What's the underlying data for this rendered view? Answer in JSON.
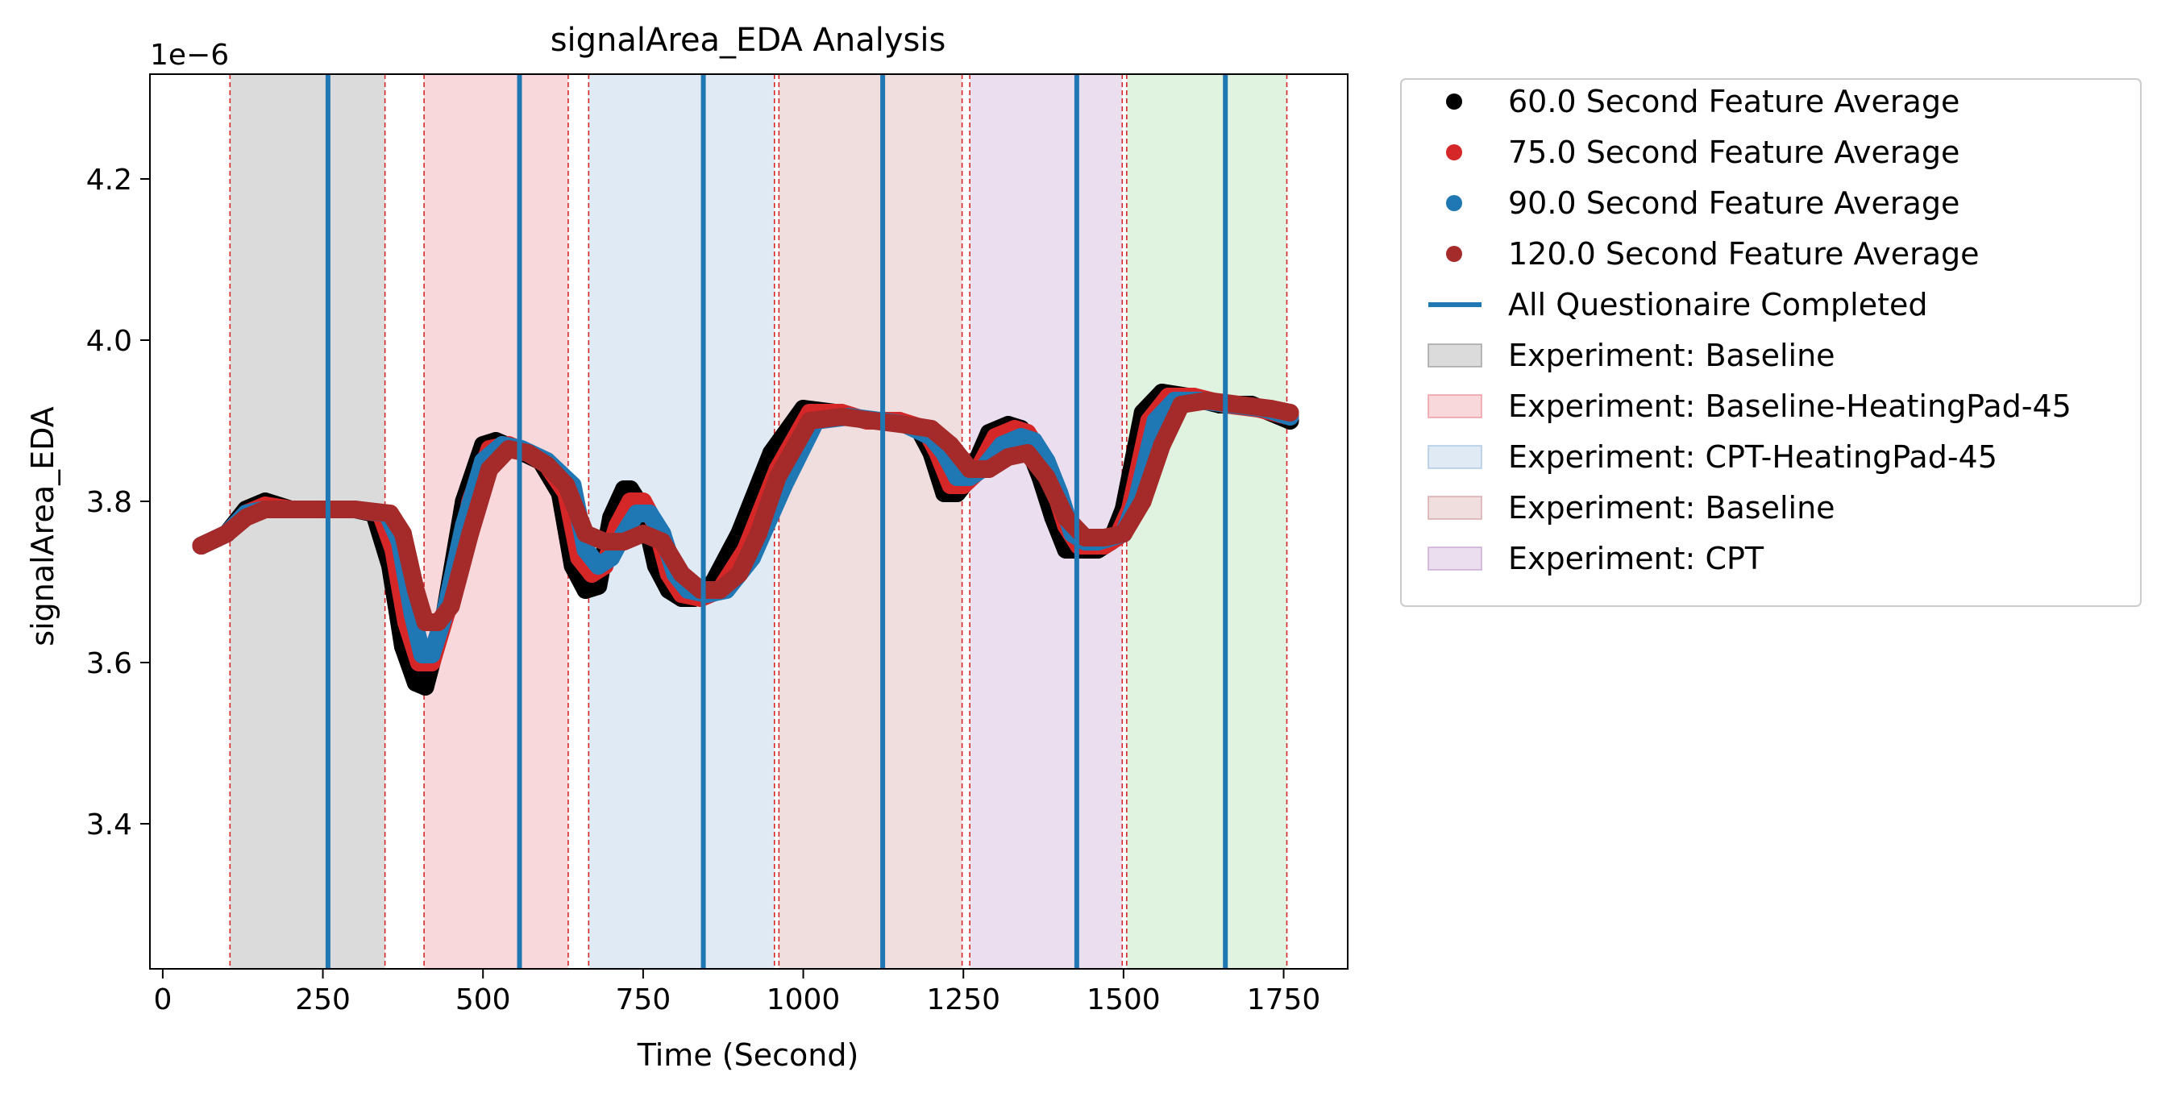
{
  "chart_data": {
    "type": "scatter",
    "title": "signalArea_EDA Analysis",
    "xlabel": "Time (Second)",
    "ylabel": "signalArea_EDA",
    "y_offset_label": "1e−6",
    "xlim": [
      -20,
      1850
    ],
    "ylim": [
      3.22,
      4.33
    ],
    "y_scale_factor": 1e-06,
    "x_ticks": [
      0,
      250,
      500,
      750,
      1000,
      1250,
      1500,
      1750
    ],
    "x_tick_labels": [
      "0",
      "250",
      "500",
      "750",
      "1000",
      "1250",
      "1500",
      "1750"
    ],
    "y_ticks": [
      3.4,
      3.6,
      3.8,
      4.0,
      4.2
    ],
    "y_tick_labels": [
      "3.4",
      "3.6",
      "3.8",
      "4.0",
      "4.2"
    ],
    "grid": false,
    "legend_placement": "outside-upper-right",
    "experiment_regions": [
      {
        "label": "Experiment: Baseline",
        "start": 105,
        "end": 347,
        "color": "#7f7f7f"
      },
      {
        "label": "Experiment: Baseline-HeatingPad-45",
        "start": 408,
        "end": 633,
        "color": "#e8737c"
      },
      {
        "label": "Experiment: CPT-HeatingPad-45",
        "start": 665,
        "end": 955,
        "color": "#8db4d6"
      },
      {
        "label": "Experiment: Baseline",
        "start": 962,
        "end": 1248,
        "color": "#c98a8a"
      },
      {
        "label": "Experiment: CPT",
        "start": 1260,
        "end": 1498,
        "color": "#b88ac4"
      },
      {
        "label": "",
        "start": 1505,
        "end": 1755,
        "color": "#8fcf8f"
      }
    ],
    "boundary_lines": [
      105,
      347,
      408,
      633,
      665,
      955,
      962,
      1248,
      1260,
      1498,
      1505,
      1755
    ],
    "questionnaire_lines": {
      "label": "All Questionaire Completed",
      "color": "#1f77b4",
      "x": [
        258,
        557,
        844,
        1124,
        1427,
        1659
      ]
    },
    "series": [
      {
        "name": "60.0 Second Feature Average",
        "color": "#000000",
        "x": [
          60,
          100,
          130,
          160,
          200,
          250,
          300,
          330,
          355,
          375,
          395,
          410,
          440,
          470,
          500,
          520,
          550,
          590,
          620,
          640,
          660,
          680,
          700,
          720,
          730,
          750,
          770,
          790,
          810,
          830,
          860,
          900,
          950,
          1000,
          1050,
          1100,
          1150,
          1180,
          1200,
          1220,
          1240,
          1260,
          1290,
          1320,
          1340,
          1350,
          1370,
          1390,
          1410,
          1420,
          1440,
          1460,
          1480,
          1500,
          1530,
          1560,
          1600,
          1650,
          1700,
          1760
        ],
        "y": [
          3.745,
          3.76,
          3.79,
          3.8,
          3.79,
          3.79,
          3.79,
          3.785,
          3.72,
          3.62,
          3.575,
          3.57,
          3.66,
          3.8,
          3.87,
          3.875,
          3.865,
          3.85,
          3.81,
          3.72,
          3.69,
          3.695,
          3.78,
          3.815,
          3.815,
          3.79,
          3.72,
          3.69,
          3.68,
          3.68,
          3.7,
          3.76,
          3.86,
          3.915,
          3.91,
          3.9,
          3.9,
          3.89,
          3.86,
          3.81,
          3.81,
          3.83,
          3.885,
          3.895,
          3.89,
          3.87,
          3.83,
          3.78,
          3.74,
          3.74,
          3.74,
          3.74,
          3.75,
          3.79,
          3.91,
          3.935,
          3.93,
          3.92,
          3.92,
          3.9
        ]
      },
      {
        "name": "75.0 Second Feature Average",
        "color": "#d62728",
        "x": [
          60,
          100,
          130,
          160,
          200,
          250,
          300,
          340,
          360,
          380,
          400,
          420,
          450,
          480,
          510,
          540,
          570,
          600,
          630,
          650,
          670,
          690,
          710,
          730,
          750,
          770,
          790,
          810,
          840,
          870,
          910,
          960,
          1010,
          1060,
          1100,
          1150,
          1190,
          1210,
          1230,
          1250,
          1270,
          1300,
          1330,
          1350,
          1370,
          1390,
          1410,
          1430,
          1450,
          1470,
          1490,
          1510,
          1540,
          1570,
          1610,
          1660,
          1710,
          1760
        ],
        "y": [
          3.745,
          3.76,
          3.785,
          3.795,
          3.79,
          3.79,
          3.79,
          3.785,
          3.74,
          3.65,
          3.6,
          3.6,
          3.68,
          3.8,
          3.865,
          3.87,
          3.86,
          3.845,
          3.81,
          3.73,
          3.71,
          3.72,
          3.77,
          3.8,
          3.8,
          3.77,
          3.71,
          3.685,
          3.68,
          3.69,
          3.74,
          3.84,
          3.91,
          3.91,
          3.9,
          3.9,
          3.89,
          3.86,
          3.82,
          3.82,
          3.835,
          3.88,
          3.89,
          3.885,
          3.86,
          3.82,
          3.77,
          3.745,
          3.745,
          3.745,
          3.755,
          3.79,
          3.9,
          3.93,
          3.93,
          3.92,
          3.915,
          3.905
        ]
      },
      {
        "name": "90.0 Second Feature Average",
        "color": "#1f77b4",
        "x": [
          60,
          100,
          130,
          160,
          200,
          250,
          300,
          350,
          370,
          390,
          405,
          420,
          440,
          470,
          500,
          530,
          560,
          600,
          640,
          660,
          680,
          700,
          720,
          740,
          760,
          780,
          800,
          820,
          850,
          880,
          920,
          970,
          1020,
          1070,
          1120,
          1160,
          1200,
          1220,
          1240,
          1260,
          1280,
          1310,
          1340,
          1360,
          1380,
          1400,
          1420,
          1440,
          1460,
          1480,
          1500,
          1520,
          1550,
          1580,
          1620,
          1670,
          1720,
          1760
        ],
        "y": [
          3.745,
          3.76,
          3.785,
          3.79,
          3.79,
          3.79,
          3.79,
          3.785,
          3.75,
          3.66,
          3.61,
          3.61,
          3.66,
          3.77,
          3.85,
          3.87,
          3.865,
          3.85,
          3.82,
          3.74,
          3.72,
          3.73,
          3.76,
          3.785,
          3.785,
          3.76,
          3.71,
          3.69,
          3.685,
          3.69,
          3.73,
          3.82,
          3.9,
          3.905,
          3.9,
          3.895,
          3.88,
          3.86,
          3.83,
          3.83,
          3.84,
          3.87,
          3.88,
          3.875,
          3.85,
          3.81,
          3.76,
          3.75,
          3.75,
          3.755,
          3.76,
          3.8,
          3.9,
          3.925,
          3.925,
          3.92,
          3.915,
          3.905
        ]
      },
      {
        "name": "120.0 Second Feature Average",
        "color": "#a52a2a",
        "x": [
          60,
          100,
          130,
          160,
          200,
          250,
          300,
          355,
          375,
          395,
          410,
          430,
          450,
          480,
          510,
          540,
          570,
          600,
          630,
          660,
          690,
          720,
          750,
          780,
          810,
          840,
          870,
          900,
          930,
          960,
          1010,
          1060,
          1110,
          1160,
          1200,
          1230,
          1260,
          1290,
          1320,
          1350,
          1380,
          1410,
          1440,
          1470,
          1500,
          1530,
          1560,
          1590,
          1630,
          1680,
          1730,
          1760
        ],
        "y": [
          3.745,
          3.76,
          3.78,
          3.79,
          3.79,
          3.79,
          3.79,
          3.785,
          3.76,
          3.69,
          3.65,
          3.65,
          3.67,
          3.76,
          3.84,
          3.865,
          3.86,
          3.845,
          3.82,
          3.76,
          3.75,
          3.75,
          3.76,
          3.75,
          3.71,
          3.69,
          3.69,
          3.71,
          3.76,
          3.83,
          3.9,
          3.905,
          3.9,
          3.895,
          3.89,
          3.87,
          3.84,
          3.84,
          3.855,
          3.86,
          3.83,
          3.78,
          3.755,
          3.755,
          3.76,
          3.8,
          3.87,
          3.92,
          3.925,
          3.92,
          3.915,
          3.91
        ]
      }
    ],
    "legend": [
      {
        "label": "60.0 Second Feature Average",
        "kind": "marker",
        "color": "#000000"
      },
      {
        "label": "75.0 Second Feature Average",
        "kind": "marker",
        "color": "#d62728"
      },
      {
        "label": "90.0 Second Feature Average",
        "kind": "marker",
        "color": "#1f77b4"
      },
      {
        "label": "120.0 Second Feature Average",
        "kind": "marker",
        "color": "#a52a2a"
      },
      {
        "label": "All Questionaire Completed",
        "kind": "line",
        "color": "#1f77b4"
      },
      {
        "label": "Experiment: Baseline",
        "kind": "patch",
        "color": "#7f7f7f"
      },
      {
        "label": "Experiment: Baseline-HeatingPad-45",
        "kind": "patch",
        "color": "#e8737c"
      },
      {
        "label": "Experiment: CPT-HeatingPad-45",
        "kind": "patch",
        "color": "#8db4d6"
      },
      {
        "label": "Experiment: Baseline",
        "kind": "patch",
        "color": "#c98a8a"
      },
      {
        "label": "Experiment: CPT",
        "kind": "patch",
        "color": "#b88ac4"
      }
    ]
  }
}
